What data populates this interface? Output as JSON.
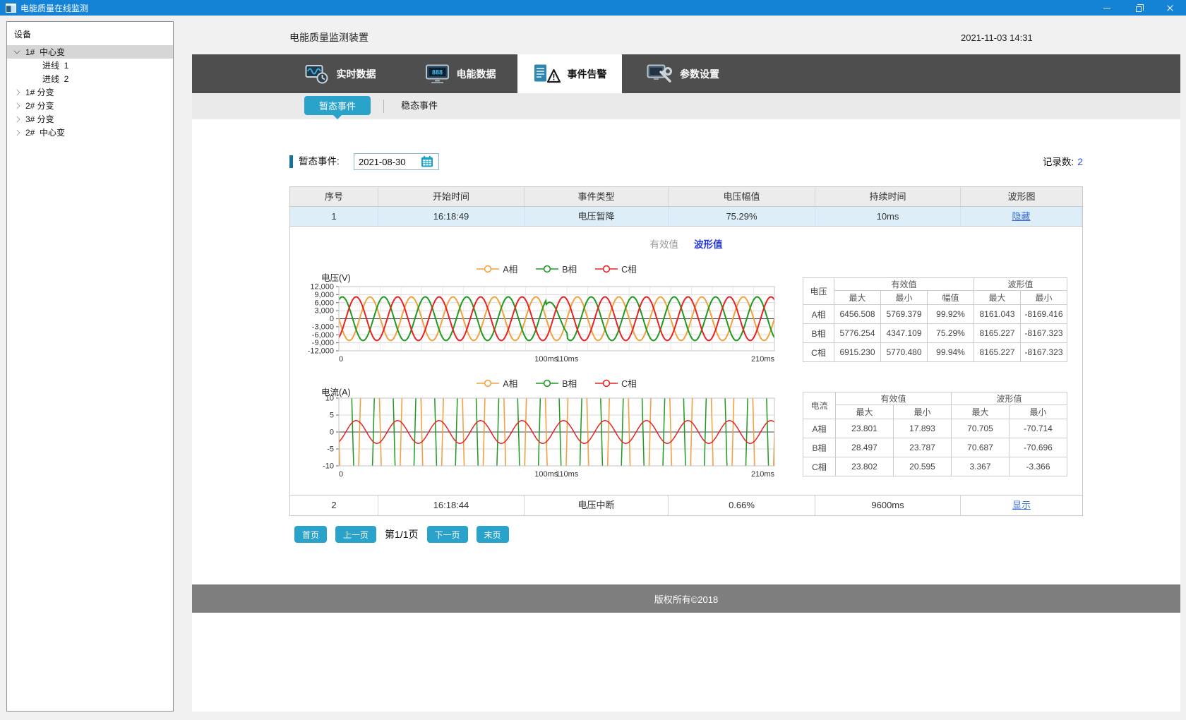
{
  "window": {
    "title": "电能质量在线监测",
    "control_icons": [
      "minimize-icon",
      "restore-icon",
      "close-icon"
    ]
  },
  "sidebar": {
    "header": "设备",
    "items": [
      {
        "label": "1#  中心变",
        "state": "expanded",
        "selected": true,
        "indent": 0
      },
      {
        "label": "进线  1",
        "state": "leaf",
        "selected": false,
        "indent": 1
      },
      {
        "label": "进线  2",
        "state": "leaf",
        "selected": false,
        "indent": 1
      },
      {
        "label": "1# 分变",
        "state": "collapsed",
        "selected": false,
        "indent": 0
      },
      {
        "label": "2# 分变",
        "state": "collapsed",
        "selected": false,
        "indent": 0
      },
      {
        "label": "3# 分变",
        "state": "collapsed",
        "selected": false,
        "indent": 0
      },
      {
        "label": "2#  中心变",
        "state": "collapsed",
        "selected": false,
        "indent": 0
      }
    ]
  },
  "header": {
    "title": "电能质量监测装置",
    "datetime": "2021-11-03 14:31"
  },
  "tabs": [
    {
      "label": "实时数据",
      "icon": "realtime-data-icon",
      "active": false
    },
    {
      "label": "电能数据",
      "icon": "energy-data-icon",
      "active": false
    },
    {
      "label": "事件告警",
      "icon": "event-alarm-icon",
      "active": true
    },
    {
      "label": "参数设置",
      "icon": "settings-icon",
      "active": false
    }
  ],
  "subtabs": [
    {
      "label": "暂态事件",
      "active": true
    },
    {
      "label": "稳态事件",
      "active": false
    }
  ],
  "filter": {
    "label": "暂态事件:",
    "date_value": "2021-08-30",
    "records_label": "记录数:",
    "records_value": "2"
  },
  "event_table": {
    "headers": [
      "序号",
      "开始时间",
      "事件类型",
      "电压幅值",
      "持续时间",
      "波形图"
    ],
    "rows": [
      {
        "no": "1",
        "start": "16:18:49",
        "type": "电压暂降",
        "magnitude": "75.29%",
        "duration": "10ms",
        "wave_link": "隐藏"
      },
      {
        "no": "2",
        "start": "16:18:44",
        "type": "电压中断",
        "magnitude": "0.66%",
        "duration": "9600ms",
        "wave_link": "显示"
      }
    ]
  },
  "detail": {
    "value_toggle": [
      {
        "label": "有效值",
        "active": false
      },
      {
        "label": "波形值",
        "active": true
      }
    ],
    "voltage_stats": {
      "corner": "电压",
      "groups": [
        "有效值",
        "波形值"
      ],
      "columns": [
        "最大",
        "最小",
        "幅值",
        "最大",
        "最小"
      ],
      "rows": [
        {
          "phase": "A相",
          "values": [
            "6456.508",
            "5769.379",
            "99.92%",
            "8161.043",
            "-8169.416"
          ]
        },
        {
          "phase": "B相",
          "values": [
            "5776.254",
            "4347.109",
            "75.29%",
            "8165.227",
            "-8167.323"
          ]
        },
        {
          "phase": "C相",
          "values": [
            "6915.230",
            "5770.480",
            "99.94%",
            "8165.227",
            "-8167.323"
          ]
        }
      ]
    },
    "current_stats": {
      "corner": "电流",
      "groups": [
        "有效值",
        "波形值"
      ],
      "columns": [
        "最大",
        "最小",
        "最大",
        "最小"
      ],
      "rows": [
        {
          "phase": "A相",
          "values": [
            "23.801",
            "17.893",
            "70.705",
            "-70.714"
          ]
        },
        {
          "phase": "B相",
          "values": [
            "28.497",
            "23.787",
            "70.687",
            "-70.696"
          ]
        },
        {
          "phase": "C相",
          "values": [
            "23.802",
            "20.595",
            "3.367",
            "-3.366"
          ]
        }
      ]
    }
  },
  "chart_data": [
    {
      "type": "line",
      "ylabel": "电压(V)",
      "xlim_ms": [
        0,
        210
      ],
      "ylim": [
        -12000,
        12000
      ],
      "y_ticks": [
        "12,000",
        "9,000",
        "6,000",
        "3,000",
        "0",
        "-3,000",
        "-6,000",
        "-9,000",
        "-12,000"
      ],
      "x_ticks": [
        {
          "t": 0,
          "label": "0"
        },
        {
          "t": 100,
          "label": "100ms"
        },
        {
          "t": 110,
          "label": "110ms"
        },
        {
          "t": 210,
          "label": "210ms"
        }
      ],
      "period_ms": 20,
      "event_window_ms": [
        100,
        110
      ],
      "grid": true,
      "legend_position": "top-center",
      "series": [
        {
          "name": "A相",
          "color": "#f0a23c",
          "amplitude": 8161,
          "phase_deg": 180,
          "event_scale": 1.0
        },
        {
          "name": "B相",
          "color": "#1f9a1f",
          "amplitude": 8165,
          "phase_deg": 60,
          "event_scale": 0.7529
        },
        {
          "name": "C相",
          "color": "#e82222",
          "amplitude": 8165,
          "phase_deg": -60,
          "event_scale": 1.0
        }
      ]
    },
    {
      "type": "line",
      "ylabel": "电流(A)",
      "xlim_ms": [
        0,
        210
      ],
      "ylim": [
        -10,
        10
      ],
      "y_ticks": [
        "10",
        "5",
        "0",
        "-5",
        "-10"
      ],
      "x_ticks": [
        {
          "t": 0,
          "label": "0"
        },
        {
          "t": 100,
          "label": "100ms"
        },
        {
          "t": 110,
          "label": "110ms"
        },
        {
          "t": 210,
          "label": "210ms"
        }
      ],
      "period_ms": 20,
      "grid": true,
      "legend_position": "top-center",
      "series": [
        {
          "name": "A相",
          "color": "#f0a23c",
          "amplitude": 70.705,
          "phase_deg": 180
        },
        {
          "name": "B相",
          "color": "#1f9a1f",
          "amplitude": 70.687,
          "phase_deg": 60
        },
        {
          "name": "C相",
          "color": "#e82222",
          "amplitude": 3.367,
          "phase_deg": -60
        }
      ]
    }
  ],
  "pagination": {
    "first": "首页",
    "prev": "上一页",
    "page_info": "第1/1页",
    "next": "下一页",
    "last": "末页"
  },
  "footer": {
    "copyright": "版权所有©2018"
  }
}
